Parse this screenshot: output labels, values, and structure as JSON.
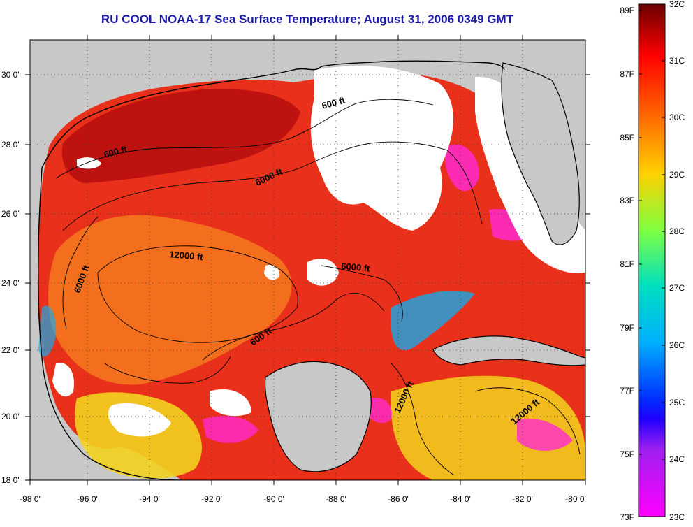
{
  "title": "RU COOL  NOAA-17  Sea Surface Temperature;  August 31, 2006 0349 GMT",
  "lat_labels": [
    "30 0'",
    "28 0'",
    "26 0'",
    "24 0'",
    "22 0'",
    "20 0'",
    "18 0'"
  ],
  "lon_labels": [
    "-98 0'",
    "-96 0'",
    "-94 0'",
    "-92 0'",
    "-90 0'",
    "-88 0'",
    "-86 0'",
    "-84 0'",
    "-82 0'",
    "-80 0'"
  ],
  "contour_labels": [
    "600 ft",
    "600 ft",
    "6000 ft",
    "12000 ft",
    "6000 ft",
    "6000 ft",
    "600 ft",
    "12000 ft",
    "12000 ft"
  ],
  "colorbar": {
    "fahrenheit_labels": [
      "89F",
      "87F",
      "85F",
      "83F",
      "81F",
      "79F",
      "77F",
      "75F",
      "73F"
    ],
    "celsius_labels": [
      "32C",
      "31C",
      "30C",
      "29C",
      "28C",
      "27C",
      "26C",
      "25C",
      "24C",
      "23C"
    ],
    "gradient_colors": [
      "#8b0000",
      "#ff0000",
      "#ff7f00",
      "#ffff00",
      "#80ff80",
      "#00ffff",
      "#0080ff",
      "#0000ff",
      "#8040c0",
      "#ff00ff",
      "#ff40c0"
    ]
  },
  "colors": {
    "land": "#c8c8c8",
    "cloud": "#ffffff",
    "title_text": "#1a1aa8",
    "warm_water": "#e8301a",
    "hot_water": "#b80f0f",
    "mid_water": "#f57a1e",
    "cool_water": "#f2d21e",
    "cold_water": "#19a9e8",
    "anomaly": "#ff2ad0"
  },
  "range_f": [
    73,
    89
  ],
  "range_c": [
    23,
    32
  ]
}
